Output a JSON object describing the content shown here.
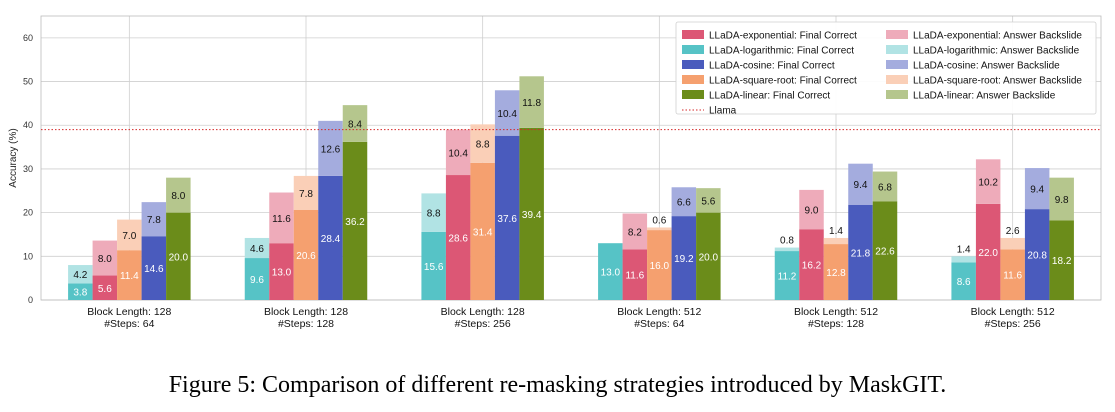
{
  "chart_data": {
    "type": "bar",
    "ylabel": "Accuracy (%)",
    "ylim": [
      0,
      65
    ],
    "yticks": [
      0,
      10,
      20,
      30,
      40,
      50,
      60
    ],
    "grid": true,
    "legend_position": "top-right",
    "categories": [
      "Block Length: 128\n#Steps: 64",
      "Block Length: 128\n#Steps: 128",
      "Block Length: 128\n#Steps: 256",
      "Block Length: 512\n#Steps: 64",
      "Block Length: 512\n#Steps: 128",
      "Block Length: 512\n#Steps: 256"
    ],
    "series": [
      {
        "name": "LLaDA-logarithmic",
        "final_label": "LLaDA-logarithmic: Final Correct",
        "backslide_label": "LLaDA-logarithmic: Answer Backslide",
        "color": "#56c3c6",
        "backslide_color": "#b1e3e4",
        "final": [
          3.8,
          9.6,
          15.6,
          13.0,
          11.2,
          8.6
        ],
        "backslide": [
          4.2,
          4.6,
          8.8,
          null,
          0.8,
          1.4
        ]
      },
      {
        "name": "LLaDA-exponential",
        "final_label": "LLaDA-exponential: Final Correct",
        "backslide_label": "LLaDA-exponential: Answer Backslide",
        "color": "#dc5775",
        "backslide_color": "#eeabba",
        "final": [
          5.6,
          13.0,
          28.6,
          11.6,
          16.2,
          22.0
        ],
        "backslide": [
          8.0,
          11.6,
          10.4,
          8.2,
          9.0,
          10.2
        ]
      },
      {
        "name": "LLaDA-square-root",
        "final_label": "LLaDA-square-root: Final Correct",
        "backslide_label": "LLaDA-square-root: Answer Backslide",
        "color": "#f5a06f",
        "backslide_color": "#facfb7",
        "final": [
          11.4,
          20.6,
          31.4,
          16.0,
          12.8,
          11.6
        ],
        "backslide": [
          7.0,
          7.8,
          8.8,
          0.6,
          1.4,
          2.6
        ]
      },
      {
        "name": "LLaDA-cosine",
        "final_label": "LLaDA-cosine: Final Correct",
        "backslide_label": "LLaDA-cosine: Answer Backslide",
        "color": "#4a5bbd",
        "backslide_color": "#a4acde",
        "final": [
          14.6,
          28.4,
          37.6,
          19.2,
          21.8,
          20.8
        ],
        "backslide": [
          7.8,
          12.6,
          10.4,
          6.6,
          9.4,
          9.4
        ]
      },
      {
        "name": "LLaDA-linear",
        "final_label": "LLaDA-linear: Final Correct",
        "backslide_label": "LLaDA-linear: Answer Backslide",
        "color": "#6b8c1a",
        "backslide_color": "#b5c68d",
        "final": [
          20.0,
          36.2,
          39.4,
          20.0,
          22.6,
          18.2
        ],
        "backslide": [
          8.0,
          8.4,
          11.8,
          5.6,
          6.8,
          9.8
        ]
      }
    ],
    "reference_line": {
      "name": "Llama",
      "value": 39.0,
      "color": "#d62728"
    },
    "legend": [
      {
        "label": "LLaDA-exponential: Final Correct",
        "color": "#dc5775",
        "kind": "box"
      },
      {
        "label": "LLaDA-logarithmic: Final Correct",
        "color": "#56c3c6",
        "kind": "box"
      },
      {
        "label": "LLaDA-cosine: Final Correct",
        "color": "#4a5bbd",
        "kind": "box"
      },
      {
        "label": "LLaDA-square-root: Final Correct",
        "color": "#f5a06f",
        "kind": "box"
      },
      {
        "label": "LLaDA-linear: Final Correct",
        "color": "#6b8c1a",
        "kind": "box"
      },
      {
        "label": "Llama",
        "color": "#d62728",
        "kind": "line"
      },
      {
        "label": "LLaDA-exponential: Answer Backslide",
        "color": "#eeabba",
        "kind": "box"
      },
      {
        "label": "LLaDA-logarithmic: Answer Backslide",
        "color": "#b1e3e4",
        "kind": "box"
      },
      {
        "label": "LLaDA-cosine: Answer Backslide",
        "color": "#a4acde",
        "kind": "box"
      },
      {
        "label": "LLaDA-square-root: Answer Backslide",
        "color": "#facfb7",
        "kind": "box"
      },
      {
        "label": "LLaDA-linear: Answer Backslide",
        "color": "#b5c68d",
        "kind": "box"
      }
    ]
  },
  "caption": "Figure 5: Comparison of different re-masking strategies introduced by MaskGIT."
}
